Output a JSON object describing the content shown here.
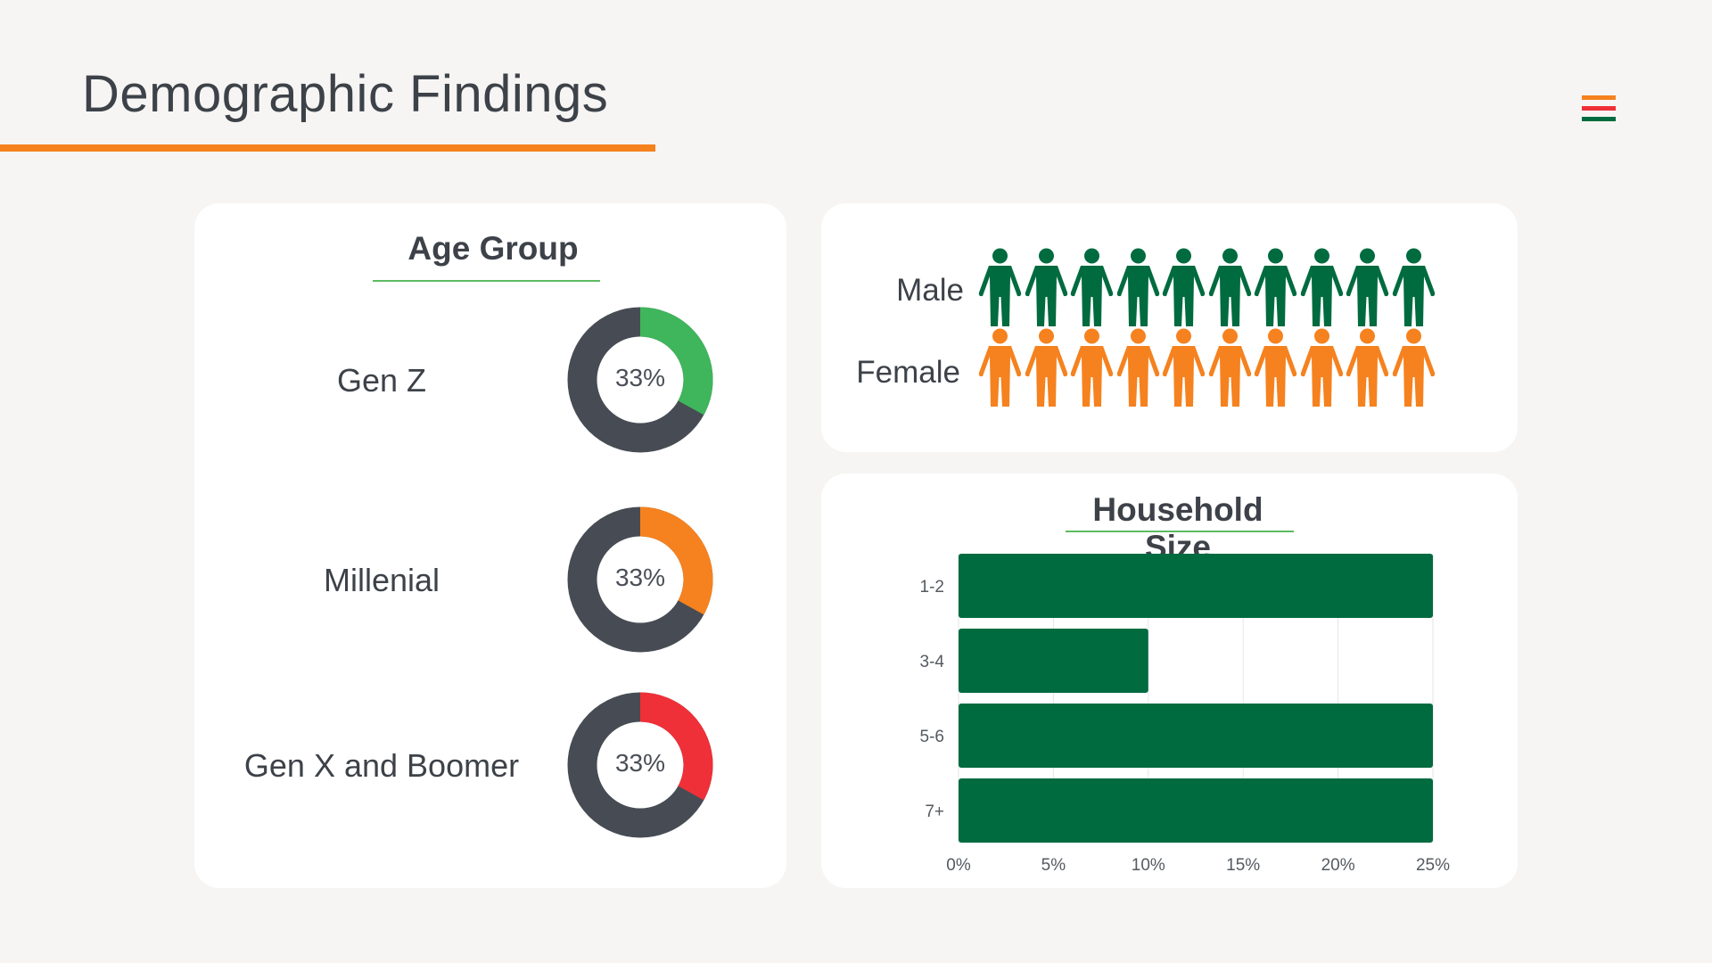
{
  "page": {
    "title": "Demographic Findings"
  },
  "colors": {
    "orange": "#f5821f",
    "green_dark": "#006b3f",
    "green_light": "#3fb55c",
    "red": "#ef3038",
    "donut_track": "#474c54",
    "logo": [
      "#f5821f",
      "#ef3038",
      "#006b3f"
    ]
  },
  "age_group": {
    "heading": "Age Group",
    "items": [
      {
        "label": "Gen Z",
        "value_text": "33%",
        "value": 33,
        "color": "#3fb55c"
      },
      {
        "label": "Millenial",
        "value_text": "33%",
        "value": 33,
        "color": "#f5821f"
      },
      {
        "label": "Gen X and Boomer",
        "value_text": "33%",
        "value": 33,
        "color": "#ef3038"
      }
    ]
  },
  "gender": {
    "rows": [
      {
        "label": "Male",
        "count": 10,
        "color": "#006b3f",
        "icon": "person-icon"
      },
      {
        "label": "Female",
        "count": 10,
        "color": "#f5821f",
        "icon": "person-icon"
      }
    ]
  },
  "chart_data": [
    {
      "type": "pie",
      "title": "Age Group",
      "categories": [
        "Gen Z",
        "Millenial",
        "Gen X and Boomer"
      ],
      "values": [
        33,
        33,
        33
      ],
      "unit": "%"
    },
    {
      "type": "bar",
      "orientation": "horizontal",
      "title": "Household Size",
      "categories": [
        "1-2",
        "3-4",
        "5-6",
        "7+"
      ],
      "values": [
        25,
        10,
        25,
        25
      ],
      "xlim": [
        0,
        25
      ],
      "xticks": [
        "0%",
        "5%",
        "10%",
        "15%",
        "20%",
        "25%"
      ],
      "grid": "vertical",
      "bar_color": "#006b3f"
    }
  ]
}
